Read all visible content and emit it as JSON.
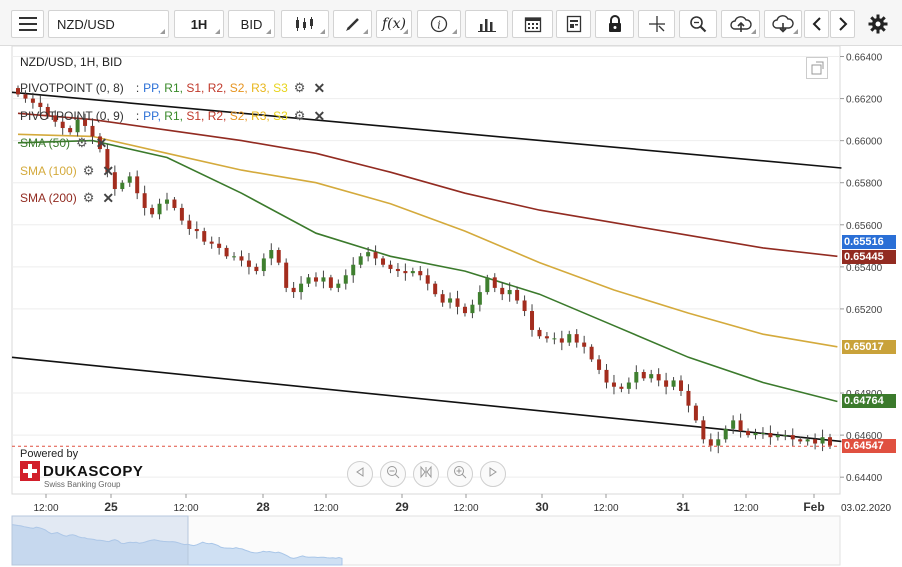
{
  "toolbar": {
    "instrument": "NZD/USD",
    "timeframe": "1H",
    "side": "BID",
    "menu_icon": "hamburger-icon",
    "icons": [
      "candles-icon",
      "pen-icon",
      "function-icon",
      "info-icon",
      "bar-chart-icon",
      "calendar-icon",
      "document-icon",
      "lock-icon",
      "crosshair-icon",
      "zoom-icon",
      "upload-icon",
      "download-icon",
      "prev-icon",
      "next-icon",
      "gear-icon"
    ]
  },
  "legend": {
    "instrument": "NZD/USD, 1H, BID",
    "pivot_rows": [
      {
        "name": "PIVOTPOINT (0, 8)",
        "sep": ":",
        "items": [
          "PP,",
          "R1,",
          "S1,",
          "R2,",
          "S2,",
          "R3,",
          "S3"
        ]
      },
      {
        "name": "PIVOTPOINT (0, 9)",
        "sep": ":",
        "items": [
          "PP,",
          "R1,",
          "S1,",
          "R2,",
          "S2,",
          "R3,",
          "S3"
        ]
      }
    ],
    "sma_rows": [
      {
        "name": "SMA (50)",
        "color": "#3b7a2c"
      },
      {
        "name": "SMA (100)",
        "color": "#d4aa3c"
      },
      {
        "name": "SMA (200)",
        "color": "#922b21"
      }
    ],
    "pivot_colors": [
      "#2a6fd6",
      "#3a8a2a",
      "#c0392b",
      "#c0392b",
      "#e69420",
      "#e8b61c",
      "#e8d41c"
    ]
  },
  "branding": {
    "powered_by": "Powered by",
    "brand": "DUKASCOPY",
    "sub": "Swiss Banking Group"
  },
  "chart_data": {
    "type": "candlestick",
    "y_range": [
      0.6432,
      0.6645
    ],
    "y_ticks": [
      "0.66400",
      "0.66200",
      "0.66000",
      "0.65800",
      "0.65600",
      "0.65400",
      "0.65200",
      "0.64800",
      "0.64600",
      "0.64400"
    ],
    "x_ticks": [
      "12:00",
      "25",
      "12:00",
      "28",
      "12:00",
      "29",
      "12:00",
      "30",
      "12:00",
      "31",
      "12:00",
      "Feb",
      "03.02.2020"
    ],
    "price_tags": [
      {
        "label": "0.65516",
        "value": 0.65516,
        "color": "#2a6fd6"
      },
      {
        "label": "0.65445",
        "value": 0.65445,
        "color": "#922b21"
      },
      {
        "label": "0.65017",
        "value": 0.65017,
        "color": "#c9a23a"
      },
      {
        "label": "0.64764",
        "value": 0.64764,
        "color": "#3b7a2c"
      },
      {
        "label": "0.64547",
        "value": 0.64547,
        "color": "#e05040"
      }
    ],
    "close": [
      0.6622,
      0.662,
      0.6618,
      0.6616,
      0.6612,
      0.6609,
      0.6606,
      0.6604,
      0.661,
      0.6607,
      0.6602,
      0.6596,
      0.6585,
      0.6577,
      0.658,
      0.6583,
      0.6575,
      0.6568,
      0.6565,
      0.657,
      0.6572,
      0.6568,
      0.6562,
      0.6558,
      0.6557,
      0.6552,
      0.6551,
      0.6549,
      0.6545,
      0.6545,
      0.6543,
      0.654,
      0.6538,
      0.6544,
      0.6548,
      0.6542,
      0.653,
      0.6528,
      0.6532,
      0.6535,
      0.6533,
      0.6535,
      0.653,
      0.6532,
      0.6536,
      0.6541,
      0.6545,
      0.6547,
      0.6544,
      0.6541,
      0.6539,
      0.6538,
      0.6537,
      0.6538,
      0.6536,
      0.6532,
      0.6527,
      0.6523,
      0.6525,
      0.6521,
      0.6518,
      0.6522,
      0.6528,
      0.6535,
      0.653,
      0.6527,
      0.6529,
      0.6524,
      0.6519,
      0.651,
      0.6507,
      0.6506,
      0.6506,
      0.6504,
      0.6508,
      0.6504,
      0.6502,
      0.6496,
      0.6491,
      0.6485,
      0.6483,
      0.6482,
      0.6485,
      0.649,
      0.6487,
      0.6489,
      0.6486,
      0.6483,
      0.6486,
      0.6481,
      0.6474,
      0.6467,
      0.6458,
      0.6455,
      0.6458,
      0.6463,
      0.6467,
      0.6462,
      0.646,
      0.6461,
      0.6461,
      0.6459,
      0.646,
      0.646,
      0.6458,
      0.6457,
      0.6458,
      0.6456,
      0.6459,
      0.6455
    ],
    "sma": [
      {
        "name": "SMA (50)",
        "points": [
          [
            0,
            0.6599
          ],
          [
            10,
            0.66
          ],
          [
            20,
            0.6592
          ],
          [
            30,
            0.6575
          ],
          [
            40,
            0.6556
          ],
          [
            50,
            0.6545
          ],
          [
            60,
            0.6538
          ],
          [
            70,
            0.6527
          ],
          [
            80,
            0.6512
          ],
          [
            90,
            0.6497
          ],
          [
            100,
            0.6485
          ],
          [
            110,
            0.6476
          ]
        ]
      },
      {
        "name": "SMA (100)",
        "points": [
          [
            0,
            0.6603
          ],
          [
            10,
            0.6602
          ],
          [
            20,
            0.6594
          ],
          [
            30,
            0.6586
          ],
          [
            40,
            0.658
          ],
          [
            50,
            0.657
          ],
          [
            60,
            0.6557
          ],
          [
            70,
            0.6542
          ],
          [
            80,
            0.6529
          ],
          [
            90,
            0.6518
          ],
          [
            100,
            0.6508
          ],
          [
            110,
            0.6502
          ]
        ]
      },
      {
        "name": "SMA (200)",
        "points": [
          [
            0,
            0.6613
          ],
          [
            10,
            0.661
          ],
          [
            20,
            0.6605
          ],
          [
            30,
            0.66
          ],
          [
            40,
            0.6594
          ],
          [
            50,
            0.6585
          ],
          [
            60,
            0.6575
          ],
          [
            70,
            0.6567
          ],
          [
            80,
            0.6561
          ],
          [
            90,
            0.6555
          ],
          [
            100,
            0.6549
          ],
          [
            110,
            0.6545
          ]
        ]
      }
    ],
    "trendlines": [
      {
        "points": [
          [
            0,
            0.6623
          ],
          [
            110,
            0.6587
          ]
        ]
      },
      {
        "points": [
          [
            0,
            0.6497
          ],
          [
            110,
            0.6457
          ]
        ]
      }
    ]
  }
}
